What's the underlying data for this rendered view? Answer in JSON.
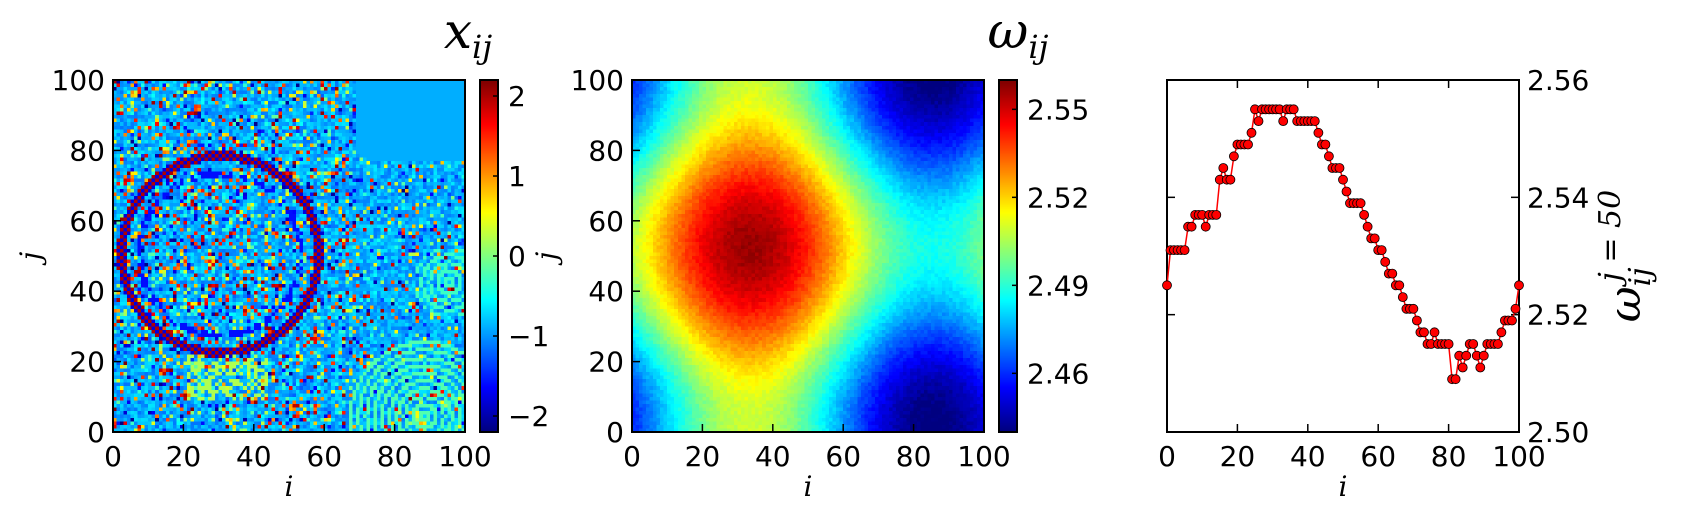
{
  "chart_data": [
    {
      "type": "heatmap",
      "title": "x",
      "title_sub": "ij",
      "xlabel": "i",
      "ylabel": "j",
      "xlim": [
        0,
        100
      ],
      "ylim": [
        0,
        100
      ],
      "xticks": [
        "0",
        "20",
        "40",
        "60",
        "80",
        "100"
      ],
      "yticks": [
        "0",
        "20",
        "40",
        "60",
        "80",
        "100"
      ],
      "colormap": "jet",
      "colorbar": {
        "range": [
          -2.2,
          2.2
        ],
        "ticks": [
          "−2",
          "−1",
          "0",
          "1",
          "2"
        ],
        "tick_values": [
          -2,
          -1,
          0,
          1,
          2
        ]
      },
      "grid": [
        100,
        100
      ],
      "pattern": "noisy phase field with concentric ring around (30,50) radius ~28, smaller rings near (85,5) and (92,40); uniform region near (90,90)"
    },
    {
      "type": "heatmap",
      "title": "ω",
      "title_sub": "ij",
      "xlabel": "i",
      "ylabel": "j",
      "xlim": [
        0,
        100
      ],
      "ylim": [
        0,
        100
      ],
      "xticks": [
        "0",
        "20",
        "40",
        "60",
        "80",
        "100"
      ],
      "yticks": [
        "0",
        "20",
        "40",
        "60",
        "80",
        "100"
      ],
      "colormap": "jet",
      "colorbar": {
        "range": [
          2.44,
          2.56
        ],
        "ticks": [
          "2.46",
          "2.49",
          "2.52",
          "2.55"
        ],
        "tick_values": [
          2.46,
          2.49,
          2.52,
          2.55
        ]
      },
      "grid": [
        100,
        100
      ],
      "pattern": "periodic field, maximum ~2.555 at (33,52), minima ~2.44 at (85,100) and (85,0)"
    },
    {
      "type": "line",
      "xlabel": "i",
      "ylabel": "ω",
      "ylabel_sub": "ij",
      "ylabel_sup": "j = 50",
      "xlim": [
        0,
        100
      ],
      "ylim": [
        2.5,
        2.56
      ],
      "xticks": [
        "0",
        "20",
        "40",
        "60",
        "80",
        "100"
      ],
      "yticks": [
        "2.50",
        "2.52",
        "2.54",
        "2.56"
      ],
      "ytick_values": [
        2.5,
        2.52,
        2.54,
        2.56
      ],
      "yaxis_side": "right",
      "series": [
        {
          "color": "#ff0000",
          "marker": "circle",
          "x": [
            0,
            1,
            2,
            3,
            4,
            5,
            6,
            7,
            8,
            9,
            10,
            11,
            12,
            13,
            14,
            15,
            16,
            17,
            18,
            19,
            20,
            21,
            22,
            23,
            24,
            25,
            26,
            27,
            28,
            29,
            30,
            31,
            32,
            33,
            34,
            35,
            36,
            37,
            38,
            39,
            40,
            41,
            42,
            43,
            44,
            45,
            46,
            47,
            48,
            49,
            50,
            51,
            52,
            53,
            54,
            55,
            56,
            57,
            58,
            59,
            60,
            61,
            62,
            63,
            64,
            65,
            66,
            67,
            68,
            69,
            70,
            71,
            72,
            73,
            74,
            75,
            76,
            77,
            78,
            79,
            80,
            81,
            82,
            83,
            84,
            85,
            86,
            87,
            88,
            89,
            90,
            91,
            92,
            93,
            94,
            95,
            96,
            97,
            98,
            99,
            100
          ],
          "y": [
            2.525,
            2.531,
            2.531,
            2.531,
            2.531,
            2.531,
            2.535,
            2.535,
            2.537,
            2.537,
            2.537,
            2.535,
            2.537,
            2.537,
            2.537,
            2.543,
            2.545,
            2.543,
            2.543,
            2.547,
            2.549,
            2.549,
            2.549,
            2.549,
            2.551,
            2.555,
            2.553,
            2.555,
            2.555,
            2.555,
            2.555,
            2.555,
            2.555,
            2.553,
            2.555,
            2.555,
            2.555,
            2.553,
            2.553,
            2.553,
            2.553,
            2.553,
            2.553,
            2.551,
            2.549,
            2.549,
            2.547,
            2.545,
            2.545,
            2.545,
            2.543,
            2.541,
            2.539,
            2.539,
            2.539,
            2.539,
            2.537,
            2.535,
            2.533,
            2.533,
            2.531,
            2.531,
            2.529,
            2.527,
            2.527,
            2.525,
            2.525,
            2.523,
            2.521,
            2.521,
            2.521,
            2.519,
            2.517,
            2.517,
            2.515,
            2.515,
            2.517,
            2.515,
            2.515,
            2.515,
            2.515,
            2.509,
            2.509,
            2.513,
            2.511,
            2.513,
            2.515,
            2.515,
            2.513,
            2.511,
            2.513,
            2.515,
            2.515,
            2.515,
            2.515,
            2.517,
            2.519,
            2.519,
            2.519,
            2.521,
            2.525
          ]
        }
      ]
    }
  ]
}
